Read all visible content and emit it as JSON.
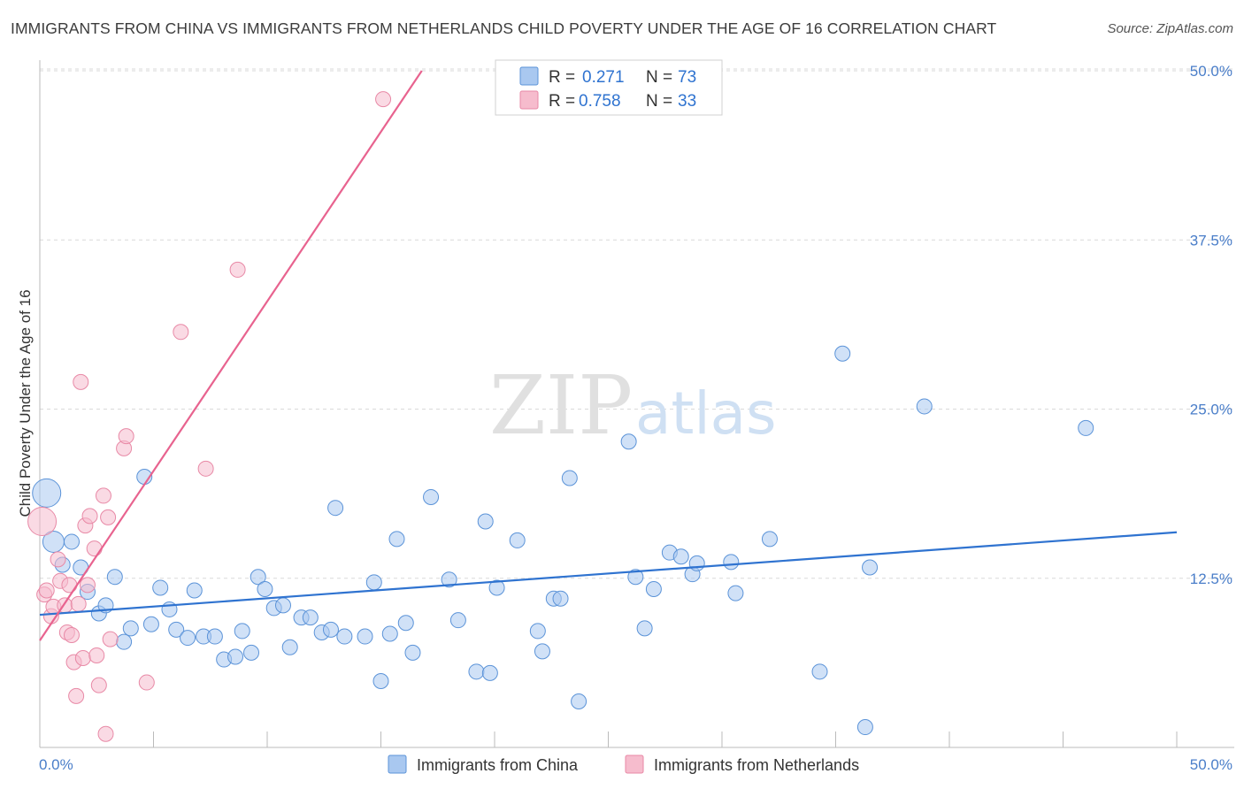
{
  "title": "IMMIGRANTS FROM CHINA VS IMMIGRANTS FROM NETHERLANDS CHILD POVERTY UNDER THE AGE OF 16 CORRELATION CHART",
  "source": "Source: ZipAtlas.com",
  "watermark": {
    "zip": "ZIP",
    "atlas": "atlas"
  },
  "colors": {
    "china_fill": "#a9c8f0",
    "china_stroke": "#5b93d8",
    "china_line": "#2f73d0",
    "neth_fill": "#f6bccd",
    "neth_stroke": "#e889a6",
    "neth_line": "#e8638f",
    "grid": "#d9d9d9",
    "tick_label": "#4a7ec9",
    "r_value": "#2f73d0"
  },
  "legend": [
    {
      "r_label": "R =",
      "r_value": "0.271",
      "n_label": "N =",
      "n_value": "73",
      "series": "china"
    },
    {
      "r_label": "R =",
      "r_value": "0.758",
      "n_label": "N =",
      "n_value": "33",
      "series": "netherlands"
    }
  ],
  "chart_data": {
    "type": "scatter",
    "title": "IMMIGRANTS FROM CHINA VS IMMIGRANTS FROM NETHERLANDS CHILD POVERTY UNDER THE AGE OF 16 CORRELATION CHART",
    "xlabel": "",
    "ylabel": "Child Poverty Under the Age of 16",
    "xlim": [
      0,
      50
    ],
    "ylim": [
      0,
      50
    ],
    "x_tick_labels": [
      "0.0%",
      "50.0%"
    ],
    "y_ticks": [
      {
        "value": 12.5,
        "label": "12.5%"
      },
      {
        "value": 25.0,
        "label": "25.0%"
      },
      {
        "value": 37.5,
        "label": "37.5%"
      },
      {
        "value": 50.0,
        "label": "50.0%"
      }
    ],
    "series": [
      {
        "name": "Immigrants from China",
        "key": "china",
        "R": 0.271,
        "N": 73,
        "trendline": {
          "x": [
            0,
            50
          ],
          "y": [
            9.8,
            15.9
          ]
        },
        "points": [
          [
            0.3,
            18.8,
            3
          ],
          [
            0.6,
            15.2,
            2
          ],
          [
            1.0,
            13.5,
            1
          ],
          [
            1.4,
            15.2,
            1
          ],
          [
            1.8,
            13.3,
            1
          ],
          [
            2.1,
            11.5,
            1
          ],
          [
            2.6,
            9.9,
            1
          ],
          [
            2.9,
            10.5,
            1
          ],
          [
            3.3,
            12.6,
            1
          ],
          [
            3.7,
            7.8,
            1
          ],
          [
            4.0,
            8.8,
            1
          ],
          [
            4.6,
            20.0,
            1
          ],
          [
            4.9,
            9.1,
            1
          ],
          [
            5.3,
            11.8,
            1
          ],
          [
            5.7,
            10.2,
            1
          ],
          [
            6.0,
            8.7,
            1
          ],
          [
            6.5,
            8.1,
            1
          ],
          [
            6.8,
            11.6,
            1
          ],
          [
            7.2,
            8.2,
            1
          ],
          [
            7.7,
            8.2,
            1
          ],
          [
            8.1,
            6.5,
            1
          ],
          [
            8.6,
            6.7,
            1
          ],
          [
            8.9,
            8.6,
            1
          ],
          [
            9.3,
            7.0,
            1
          ],
          [
            9.6,
            12.6,
            1
          ],
          [
            9.9,
            11.7,
            1
          ],
          [
            10.3,
            10.3,
            1
          ],
          [
            10.7,
            10.5,
            1
          ],
          [
            11.0,
            7.4,
            1
          ],
          [
            11.5,
            9.6,
            1
          ],
          [
            11.9,
            9.6,
            1
          ],
          [
            12.4,
            8.5,
            1
          ],
          [
            12.8,
            8.7,
            1
          ],
          [
            13.0,
            17.7,
            1
          ],
          [
            13.4,
            8.2,
            1
          ],
          [
            14.3,
            8.2,
            1
          ],
          [
            14.7,
            12.2,
            1
          ],
          [
            15.0,
            4.9,
            1
          ],
          [
            15.4,
            8.4,
            1
          ],
          [
            15.7,
            15.4,
            1
          ],
          [
            16.1,
            9.2,
            1
          ],
          [
            16.4,
            7.0,
            1
          ],
          [
            17.2,
            18.5,
            1
          ],
          [
            18.0,
            12.4,
            1
          ],
          [
            18.4,
            9.4,
            1
          ],
          [
            19.2,
            5.6,
            1
          ],
          [
            19.6,
            16.7,
            1
          ],
          [
            19.8,
            5.5,
            1
          ],
          [
            20.1,
            11.8,
            1
          ],
          [
            21.0,
            15.3,
            1
          ],
          [
            21.9,
            8.6,
            1
          ],
          [
            22.1,
            7.1,
            1
          ],
          [
            22.6,
            11.0,
            1
          ],
          [
            22.9,
            11.0,
            1
          ],
          [
            23.3,
            19.9,
            1
          ],
          [
            23.7,
            3.4,
            1
          ],
          [
            25.9,
            22.6,
            1
          ],
          [
            26.2,
            12.6,
            1
          ],
          [
            26.6,
            8.8,
            1
          ],
          [
            27.0,
            11.7,
            1
          ],
          [
            27.7,
            14.4,
            1
          ],
          [
            28.2,
            14.1,
            1
          ],
          [
            28.7,
            12.8,
            1
          ],
          [
            28.9,
            13.6,
            1
          ],
          [
            30.4,
            13.7,
            1
          ],
          [
            30.6,
            11.4,
            1
          ],
          [
            32.1,
            15.4,
            1
          ],
          [
            34.3,
            5.6,
            1
          ],
          [
            35.3,
            29.1,
            1
          ],
          [
            36.3,
            1.5,
            1
          ],
          [
            36.5,
            13.3,
            1
          ],
          [
            38.9,
            25.2,
            1
          ],
          [
            46.0,
            23.6,
            1
          ]
        ]
      },
      {
        "name": "Immigrants from Netherlands",
        "key": "netherlands",
        "R": 0.758,
        "N": 33,
        "trendline": {
          "x": [
            0,
            16.8
          ],
          "y": [
            7.9,
            50.0
          ]
        },
        "points": [
          [
            0.1,
            16.7,
            3
          ],
          [
            0.2,
            11.3,
            1
          ],
          [
            0.3,
            11.6,
            1
          ],
          [
            0.5,
            9.7,
            1
          ],
          [
            0.6,
            10.4,
            1
          ],
          [
            0.8,
            13.9,
            1
          ],
          [
            0.9,
            12.3,
            1
          ],
          [
            1.1,
            10.5,
            1
          ],
          [
            1.2,
            8.5,
            1
          ],
          [
            1.3,
            12.0,
            1
          ],
          [
            1.4,
            8.3,
            1
          ],
          [
            1.5,
            6.3,
            1
          ],
          [
            1.6,
            3.8,
            1
          ],
          [
            1.7,
            10.6,
            1
          ],
          [
            1.8,
            27.0,
            1
          ],
          [
            1.9,
            6.6,
            1
          ],
          [
            2.0,
            16.4,
            1
          ],
          [
            2.1,
            12.0,
            1
          ],
          [
            2.2,
            17.1,
            1
          ],
          [
            2.4,
            14.7,
            1
          ],
          [
            2.5,
            6.8,
            1
          ],
          [
            2.6,
            4.6,
            1
          ],
          [
            2.8,
            18.6,
            1
          ],
          [
            2.9,
            1.0,
            1
          ],
          [
            3.0,
            17.0,
            1
          ],
          [
            3.1,
            8.0,
            1
          ],
          [
            3.7,
            22.1,
            1
          ],
          [
            3.8,
            23.0,
            1
          ],
          [
            4.7,
            4.8,
            1
          ],
          [
            6.2,
            30.7,
            1
          ],
          [
            7.3,
            20.6,
            1
          ],
          [
            8.7,
            35.3,
            1
          ],
          [
            15.1,
            47.9,
            1
          ]
        ]
      }
    ],
    "bottom_legend": [
      "Immigrants from China",
      "Immigrants from Netherlands"
    ]
  }
}
